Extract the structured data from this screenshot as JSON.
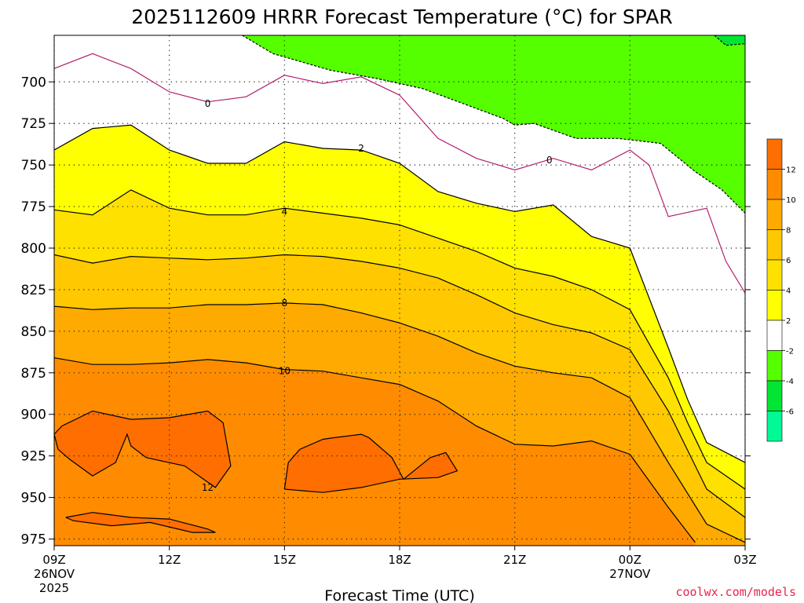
{
  "chart_data": {
    "type": "filled contour",
    "title": "2025112609 HRRR Forecast Temperature (°C) for SPAR",
    "xlabel": "Forecast Time (UTC)",
    "ylabel": "",
    "x_ticks": [
      {
        "hour": 0,
        "label": "09Z",
        "sublabel1": "26NOV",
        "sublabel2": "2025"
      },
      {
        "hour": 3,
        "label": "12Z"
      },
      {
        "hour": 6,
        "label": "15Z"
      },
      {
        "hour": 9,
        "label": "18Z"
      },
      {
        "hour": 12,
        "label": "21Z"
      },
      {
        "hour": 15,
        "label": "00Z",
        "sublabel1": "27NOV"
      },
      {
        "hour": 18,
        "label": "03Z"
      }
    ],
    "x_range": [
      0,
      18
    ],
    "y_ticks": [
      700,
      725,
      750,
      775,
      800,
      825,
      850,
      875,
      900,
      925,
      950,
      975
    ],
    "y_range": [
      979,
      672
    ],
    "y_inverted": true,
    "grid": true,
    "ground_level_mb": 980,
    "ground_color": "#a0522d",
    "colorbar": {
      "bins": [
        {
          "min": -8,
          "max": -6,
          "color": "#00fa96"
        },
        {
          "min": -6,
          "max": -4,
          "color": "#00e632"
        },
        {
          "min": -4,
          "max": -2,
          "color": "#55ff00"
        },
        {
          "min": -2,
          "max": 2,
          "color": "#ffffff"
        },
        {
          "min": 2,
          "max": 4,
          "color": "#ffff00"
        },
        {
          "min": 4,
          "max": 6,
          "color": "#ffe100"
        },
        {
          "min": 6,
          "max": 8,
          "color": "#ffc800"
        },
        {
          "min": 8,
          "max": 10,
          "color": "#ffaa00"
        },
        {
          "min": 10,
          "max": 12,
          "color": "#ff8c00"
        },
        {
          "min": 12,
          "max": 14,
          "color": "#ff6e00"
        }
      ],
      "tick_labels": [
        "-6",
        "-4",
        "-2",
        "2",
        "4",
        "6",
        "8",
        "10",
        "12"
      ]
    },
    "contours": [
      {
        "level": -4,
        "style": "dashed",
        "points": [
          [
            4.9,
            672
          ],
          [
            5.7,
            683
          ],
          [
            7.2,
            693
          ],
          [
            8.4,
            698
          ],
          [
            9.6,
            704
          ],
          [
            11.7,
            722
          ],
          [
            12,
            726
          ],
          [
            12.5,
            725
          ],
          [
            13.6,
            734
          ],
          [
            14.7,
            734
          ],
          [
            15.8,
            737
          ],
          [
            16.7,
            754
          ],
          [
            17.4,
            765
          ],
          [
            18,
            779
          ]
        ]
      },
      {
        "level": -6,
        "style": "dashed",
        "points": [
          [
            17.2,
            672
          ],
          [
            17.5,
            678
          ],
          [
            18,
            677
          ]
        ]
      },
      {
        "level": 0,
        "style": "solid-magenta",
        "labels": [
          [
            4.0,
            713
          ],
          [
            12.9,
            747
          ]
        ],
        "points": [
          [
            0,
            692
          ],
          [
            1,
            683
          ],
          [
            2,
            692
          ],
          [
            3,
            706
          ],
          [
            4,
            712
          ],
          [
            5,
            709
          ],
          [
            6,
            696
          ],
          [
            7,
            701
          ],
          [
            8,
            697
          ],
          [
            9,
            708
          ],
          [
            10,
            734
          ],
          [
            11,
            746
          ],
          [
            12,
            753
          ],
          [
            13,
            746
          ],
          [
            14,
            753
          ],
          [
            15,
            741
          ],
          [
            15.5,
            750
          ],
          [
            16,
            781
          ],
          [
            17,
            776
          ],
          [
            17.5,
            808
          ],
          [
            18,
            827
          ]
        ]
      },
      {
        "level": 2,
        "style": "solid",
        "labels": [
          [
            8,
            740
          ]
        ],
        "points": [
          [
            0,
            741
          ],
          [
            1,
            728
          ],
          [
            2,
            726
          ],
          [
            3,
            741
          ],
          [
            4,
            749
          ],
          [
            5,
            749
          ],
          [
            6,
            736
          ],
          [
            7,
            740
          ],
          [
            8,
            741
          ],
          [
            9,
            749
          ],
          [
            10,
            766
          ],
          [
            11,
            773
          ],
          [
            12,
            778
          ],
          [
            13,
            774
          ],
          [
            14,
            793
          ],
          [
            15,
            800
          ],
          [
            16,
            860
          ],
          [
            16.5,
            891
          ],
          [
            17,
            917
          ],
          [
            18,
            929
          ]
        ]
      },
      {
        "level": 4,
        "style": "solid",
        "labels": [
          [
            6,
            778
          ]
        ],
        "points": [
          [
            0,
            777
          ],
          [
            1,
            780
          ],
          [
            2,
            765
          ],
          [
            3,
            776
          ],
          [
            4,
            780
          ],
          [
            5,
            780
          ],
          [
            6,
            776
          ],
          [
            7,
            779
          ],
          [
            8,
            782
          ],
          [
            9,
            786
          ],
          [
            10,
            794
          ],
          [
            11,
            802
          ],
          [
            12,
            812
          ],
          [
            13,
            817
          ],
          [
            14,
            825
          ],
          [
            15,
            837
          ],
          [
            16,
            878
          ],
          [
            16.5,
            905
          ],
          [
            17,
            929
          ],
          [
            18,
            945
          ]
        ]
      },
      {
        "level": 6,
        "style": "solid",
        "points": [
          [
            0,
            804
          ],
          [
            1,
            809
          ],
          [
            2,
            805
          ],
          [
            3,
            806
          ],
          [
            4,
            807
          ],
          [
            5,
            806
          ],
          [
            6,
            804
          ],
          [
            7,
            805
          ],
          [
            8,
            808
          ],
          [
            9,
            812
          ],
          [
            10,
            818
          ],
          [
            11,
            828
          ],
          [
            12,
            839
          ],
          [
            13,
            846
          ],
          [
            14,
            851
          ],
          [
            15,
            861
          ],
          [
            16,
            898
          ],
          [
            17,
            945
          ],
          [
            18,
            962
          ]
        ]
      },
      {
        "level": 8,
        "style": "solid",
        "labels": [
          [
            6,
            833
          ]
        ],
        "points": [
          [
            0,
            835
          ],
          [
            1,
            837
          ],
          [
            2,
            836
          ],
          [
            3,
            836
          ],
          [
            4,
            834
          ],
          [
            5,
            834
          ],
          [
            6,
            833
          ],
          [
            7,
            834
          ],
          [
            8,
            839
          ],
          [
            9,
            845
          ],
          [
            10,
            853
          ],
          [
            11,
            863
          ],
          [
            12,
            871
          ],
          [
            13,
            875
          ],
          [
            14,
            878
          ],
          [
            15,
            890
          ],
          [
            16,
            929
          ],
          [
            17,
            966
          ],
          [
            18,
            977
          ]
        ]
      },
      {
        "level": 10,
        "style": "solid",
        "labels": [
          [
            6,
            874
          ]
        ],
        "points": [
          [
            0,
            866
          ],
          [
            1,
            870
          ],
          [
            2,
            870
          ],
          [
            3,
            869
          ],
          [
            4,
            867
          ],
          [
            5,
            869
          ],
          [
            6,
            873
          ],
          [
            7,
            874
          ],
          [
            8,
            878
          ],
          [
            9,
            882
          ],
          [
            10,
            892
          ],
          [
            11,
            907
          ],
          [
            12,
            918
          ],
          [
            13,
            919
          ],
          [
            14,
            916
          ],
          [
            15,
            924
          ],
          [
            16,
            956
          ],
          [
            16.7,
            977
          ]
        ]
      },
      {
        "level": 12,
        "style": "solid",
        "labels": [
          [
            4,
            944
          ]
        ],
        "points": [
          [
            0,
            912
          ],
          [
            0.2,
            907
          ],
          [
            1,
            898
          ],
          [
            2,
            903
          ],
          [
            3,
            902
          ],
          [
            4,
            898
          ],
          [
            4.4,
            905
          ],
          [
            4.6,
            931
          ],
          [
            4.2,
            944
          ],
          [
            3.4,
            931
          ],
          [
            2.4,
            926
          ],
          [
            2,
            919
          ],
          [
            1.9,
            912
          ],
          [
            1.6,
            929
          ],
          [
            1,
            937
          ],
          [
            0.4,
            927
          ],
          [
            0.1,
            921
          ],
          [
            0,
            912
          ]
        ]
      },
      {
        "level": 12,
        "style": "solid",
        "points": [
          [
            0.3,
            962
          ],
          [
            1,
            959
          ],
          [
            2,
            962
          ],
          [
            3,
            963
          ],
          [
            4,
            969
          ],
          [
            4.2,
            971
          ],
          [
            3.6,
            971
          ],
          [
            2.5,
            965
          ],
          [
            1.5,
            967
          ],
          [
            0.5,
            964
          ],
          [
            0.3,
            962
          ]
        ]
      },
      {
        "level": 12,
        "style": "solid",
        "points": [
          [
            6,
            945
          ],
          [
            7,
            947
          ],
          [
            8,
            944
          ],
          [
            9,
            939
          ],
          [
            10,
            938
          ],
          [
            10.5,
            934
          ],
          [
            10.2,
            923
          ],
          [
            9.8,
            926
          ],
          [
            9.1,
            939
          ],
          [
            8.8,
            926
          ],
          [
            8.2,
            914
          ],
          [
            8,
            912
          ],
          [
            7.3,
            914
          ],
          [
            7,
            915
          ],
          [
            6.4,
            921
          ],
          [
            6.1,
            929
          ],
          [
            6,
            945
          ]
        ]
      }
    ],
    "label_overlays": [
      "0",
      "0",
      "2",
      "4",
      "8",
      "10",
      "12"
    ]
  },
  "credit": "coolwx.com/models"
}
